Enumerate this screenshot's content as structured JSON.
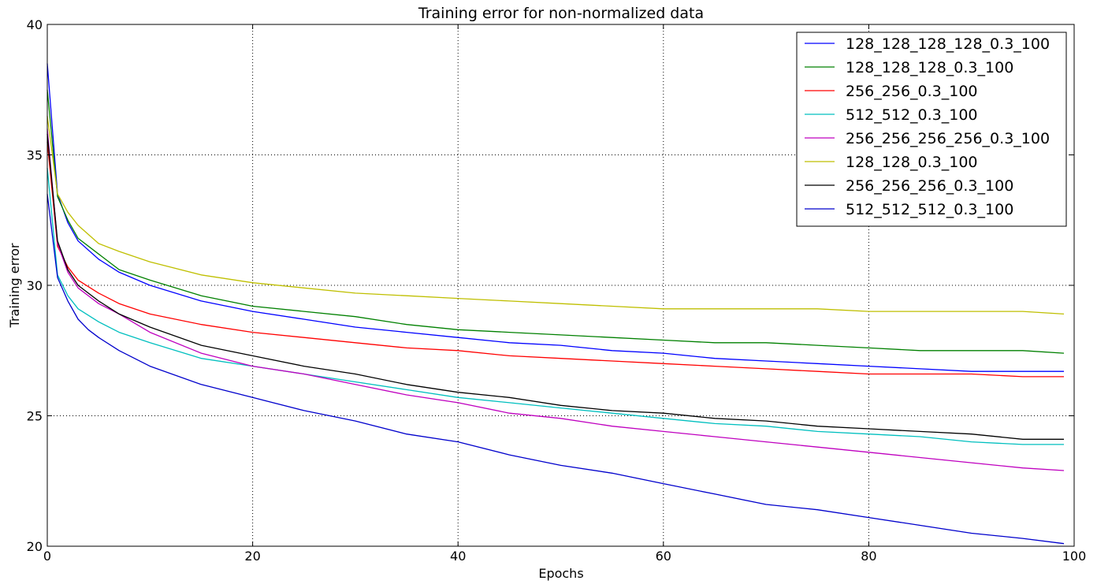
{
  "chart_data": {
    "type": "line",
    "title": "Training error for non-normalized data",
    "xlabel": "Epochs",
    "ylabel": "Training error",
    "xlim": [
      0,
      100
    ],
    "ylim": [
      20,
      40
    ],
    "xticks": [
      0,
      20,
      40,
      60,
      80,
      100
    ],
    "yticks": [
      20,
      25,
      30,
      35,
      40
    ],
    "grid": true,
    "legend_position": "top-right",
    "series": [
      {
        "name": "128_128_128_128_0.3_100",
        "color": "#0000ff",
        "x": [
          0,
          1,
          2,
          3,
          5,
          7,
          10,
          15,
          20,
          25,
          30,
          35,
          40,
          45,
          50,
          55,
          60,
          65,
          70,
          75,
          80,
          85,
          90,
          95,
          99
        ],
        "y": [
          38.5,
          33.5,
          32.4,
          31.7,
          31.0,
          30.5,
          30.0,
          29.4,
          29.0,
          28.7,
          28.4,
          28.2,
          28.0,
          27.8,
          27.7,
          27.5,
          27.4,
          27.2,
          27.1,
          27.0,
          26.9,
          26.8,
          26.7,
          26.7,
          26.7
        ]
      },
      {
        "name": "128_128_128_0.3_100",
        "color": "#008000",
        "x": [
          0,
          1,
          2,
          3,
          5,
          7,
          10,
          15,
          20,
          25,
          30,
          35,
          40,
          45,
          50,
          55,
          60,
          65,
          70,
          75,
          80,
          85,
          90,
          95,
          99
        ],
        "y": [
          37.5,
          33.4,
          32.5,
          31.8,
          31.2,
          30.6,
          30.2,
          29.6,
          29.2,
          29.0,
          28.8,
          28.5,
          28.3,
          28.2,
          28.1,
          28.0,
          27.9,
          27.8,
          27.8,
          27.7,
          27.6,
          27.5,
          27.5,
          27.5,
          27.4
        ]
      },
      {
        "name": "256_256_0.3_100",
        "color": "#ff0000",
        "x": [
          0,
          1,
          2,
          3,
          5,
          7,
          10,
          15,
          20,
          25,
          30,
          35,
          40,
          45,
          50,
          55,
          60,
          65,
          70,
          75,
          80,
          85,
          90,
          95,
          99
        ],
        "y": [
          35.5,
          31.5,
          30.7,
          30.2,
          29.7,
          29.3,
          28.9,
          28.5,
          28.2,
          28.0,
          27.8,
          27.6,
          27.5,
          27.3,
          27.2,
          27.1,
          27.0,
          26.9,
          26.8,
          26.7,
          26.6,
          26.6,
          26.6,
          26.5,
          26.5
        ]
      },
      {
        "name": "512_512_0.3_100",
        "color": "#00bfbf",
        "x": [
          0,
          1,
          2,
          3,
          5,
          7,
          10,
          15,
          20,
          25,
          30,
          35,
          40,
          45,
          50,
          55,
          60,
          65,
          70,
          75,
          80,
          85,
          90,
          95,
          99
        ],
        "y": [
          34.5,
          30.4,
          29.6,
          29.1,
          28.6,
          28.2,
          27.8,
          27.2,
          26.9,
          26.6,
          26.3,
          26.0,
          25.7,
          25.5,
          25.3,
          25.1,
          24.9,
          24.7,
          24.6,
          24.4,
          24.3,
          24.2,
          24.0,
          23.9,
          23.9
        ]
      },
      {
        "name": "256_256_256_256_0.3_100",
        "color": "#bf00bf",
        "x": [
          0,
          1,
          2,
          3,
          5,
          7,
          10,
          15,
          20,
          25,
          30,
          35,
          40,
          45,
          50,
          55,
          60,
          65,
          70,
          75,
          80,
          85,
          90,
          95,
          99
        ],
        "y": [
          36.0,
          31.6,
          30.5,
          29.9,
          29.3,
          28.9,
          28.2,
          27.4,
          26.9,
          26.6,
          26.2,
          25.8,
          25.5,
          25.1,
          24.9,
          24.6,
          24.4,
          24.2,
          24.0,
          23.8,
          23.6,
          23.4,
          23.2,
          23.0,
          22.9
        ]
      },
      {
        "name": "128_128_0.3_100",
        "color": "#bfbf00",
        "x": [
          0,
          1,
          2,
          3,
          5,
          7,
          10,
          15,
          20,
          25,
          30,
          35,
          40,
          45,
          50,
          55,
          60,
          65,
          70,
          75,
          80,
          85,
          90,
          95,
          99
        ],
        "y": [
          36.5,
          33.5,
          32.8,
          32.3,
          31.6,
          31.3,
          30.9,
          30.4,
          30.1,
          29.9,
          29.7,
          29.6,
          29.5,
          29.4,
          29.3,
          29.2,
          29.1,
          29.1,
          29.1,
          29.1,
          29.0,
          29.0,
          29.0,
          29.0,
          28.9
        ]
      },
      {
        "name": "256_256_256_0.3_100",
        "color": "#000000",
        "x": [
          0,
          1,
          2,
          3,
          5,
          7,
          10,
          15,
          20,
          25,
          30,
          35,
          40,
          45,
          50,
          55,
          60,
          65,
          70,
          75,
          80,
          85,
          90,
          95,
          99
        ],
        "y": [
          35.8,
          31.7,
          30.6,
          30.0,
          29.4,
          28.9,
          28.4,
          27.7,
          27.3,
          26.9,
          26.6,
          26.2,
          25.9,
          25.7,
          25.4,
          25.2,
          25.1,
          24.9,
          24.8,
          24.6,
          24.5,
          24.4,
          24.3,
          24.1,
          24.1
        ]
      },
      {
        "name": "512_512_512_0.3_100",
        "color": "#0000cc",
        "x": [
          0,
          1,
          2,
          3,
          4,
          5,
          7,
          10,
          15,
          20,
          25,
          30,
          35,
          40,
          45,
          50,
          55,
          60,
          65,
          70,
          75,
          80,
          85,
          90,
          95,
          99
        ],
        "y": [
          33.5,
          30.3,
          29.4,
          28.7,
          28.3,
          28.0,
          27.5,
          26.9,
          26.2,
          25.7,
          25.2,
          24.8,
          24.3,
          24.0,
          23.5,
          23.1,
          22.8,
          22.4,
          22.0,
          21.6,
          21.4,
          21.1,
          20.8,
          20.5,
          20.3,
          20.1
        ]
      }
    ]
  }
}
